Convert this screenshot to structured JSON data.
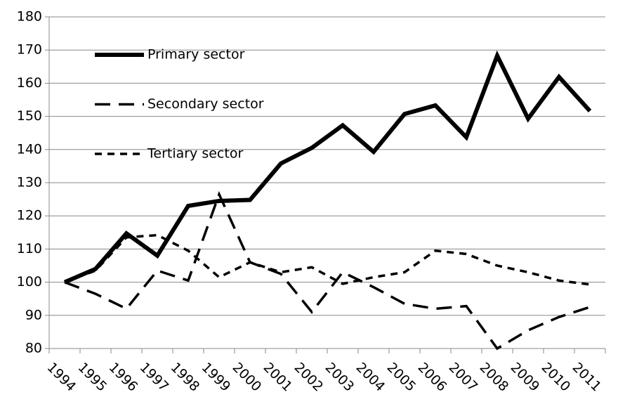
{
  "chart_data": {
    "type": "line",
    "categories": [
      "1994",
      "1995",
      "1996",
      "1997",
      "1998",
      "1999",
      "2000",
      "2001",
      "2002",
      "2003",
      "2004",
      "2005",
      "2006",
      "2007",
      "2008",
      "2009",
      "2010",
      "2011"
    ],
    "series": [
      {
        "name": "Primary sector",
        "color": "#000000",
        "style": "solid",
        "values": [
          100,
          104,
          114.7,
          108,
          123,
          124.5,
          124.8,
          135.8,
          140.5,
          147.3,
          139.3,
          150.7,
          153.3,
          143.7,
          168.3,
          149.3,
          161.9,
          151.6
        ]
      },
      {
        "name": "Secondary sector",
        "color": "#000000",
        "style": "long-dash",
        "values": [
          100,
          96.5,
          92,
          103.5,
          100.5,
          126.5,
          106,
          102.5,
          91,
          103,
          98.5,
          93.5,
          92,
          92.8,
          80,
          85.5,
          89.5,
          92.5
        ]
      },
      {
        "name": "Tertiary sector",
        "color": "#000000",
        "style": "short-dash",
        "values": [
          100,
          103.5,
          113.5,
          114.2,
          109.5,
          101.5,
          106,
          103,
          104.5,
          99.5,
          101.5,
          103,
          109.5,
          108.5,
          105,
          103,
          100.5,
          99.3
        ]
      }
    ],
    "ylim": [
      80,
      180
    ],
    "yticks": [
      80,
      90,
      100,
      110,
      120,
      130,
      140,
      150,
      160,
      170,
      180
    ],
    "grid": true,
    "legend": "upper-left"
  }
}
